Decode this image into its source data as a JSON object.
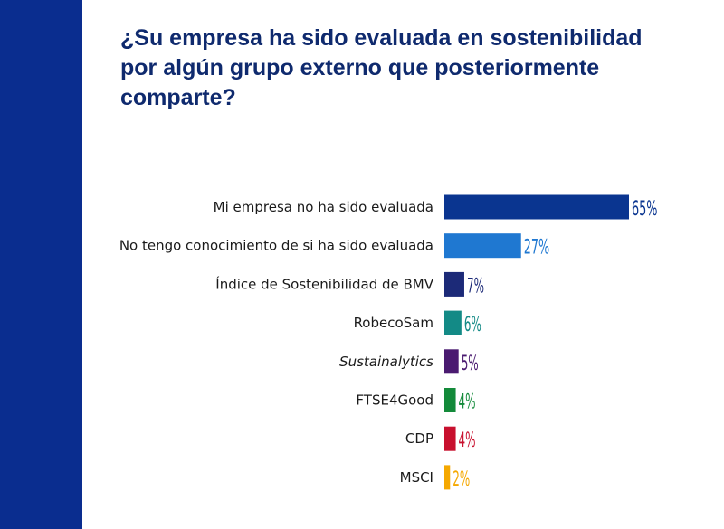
{
  "chart_data": {
    "type": "bar",
    "orientation": "horizontal",
    "title": "¿Su empresa ha sido evaluada en sostenibilidad por algún grupo externo que posteriormente comparte?",
    "categories": [
      "Mi empresa no ha sido evaluada",
      "No tengo conocimiento de si ha sido evaluada",
      "Índice de Sostenibilidad de BMV",
      "RobecoSam",
      "Sustainalytics",
      "FTSE4Good",
      "CDP",
      "MSCI"
    ],
    "values": [
      65,
      27,
      7,
      6,
      5,
      4,
      4,
      2
    ],
    "value_labels": [
      "65%",
      "27%",
      "7%",
      "6%",
      "5%",
      "4%",
      "4%",
      "2%"
    ],
    "italic": [
      false,
      false,
      false,
      false,
      true,
      false,
      false,
      false
    ],
    "colors": [
      "#0a3590",
      "#1f78d1",
      "#1c2a78",
      "#138a86",
      "#4a1a70",
      "#138a3a",
      "#c8102e",
      "#f5a800"
    ],
    "xlim": [
      0,
      65
    ],
    "grid": false,
    "legend": "none"
  },
  "colors": {
    "side_band": "#0a2d8f",
    "title": "#0f2a6e"
  }
}
